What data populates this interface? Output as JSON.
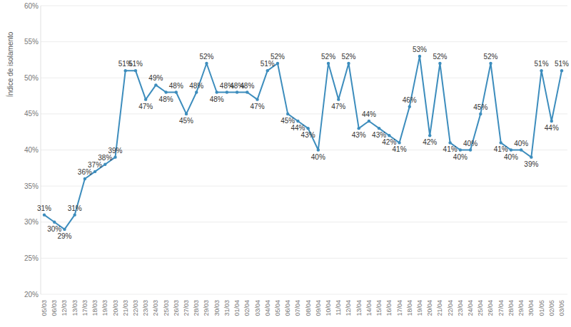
{
  "chart_data": {
    "type": "line",
    "y_label": "Índice de isolamento",
    "categories": [
      "05/03",
      "06/03",
      "12/03",
      "13/03",
      "17/03",
      "18/03",
      "19/03",
      "20/03",
      "21/03",
      "22/03",
      "23/03",
      "24/03",
      "25/03",
      "26/03",
      "27/03",
      "28/03",
      "29/03",
      "30/03",
      "31/03",
      "01/04",
      "02/04",
      "03/04",
      "04/04",
      "05/04",
      "06/04",
      "07/04",
      "08/04",
      "09/04",
      "10/04",
      "11/04",
      "12/04",
      "13/04",
      "14/04",
      "15/04",
      "16/04",
      "17/04",
      "18/04",
      "19/04",
      "20/04",
      "21/04",
      "22/04",
      "23/04",
      "24/04",
      "25/04",
      "26/04",
      "27/04",
      "28/04",
      "29/04",
      "30/04",
      "01/05",
      "02/05",
      "03/05"
    ],
    "values": [
      31,
      30,
      29,
      31,
      36,
      37,
      38,
      39,
      51,
      51,
      47,
      49,
      48,
      48,
      45,
      48,
      52,
      48,
      48,
      48,
      48,
      47,
      51,
      52,
      45,
      44,
      43,
      40,
      52,
      47,
      52,
      43,
      44,
      43,
      42,
      41,
      46,
      53,
      42,
      52,
      41,
      40,
      40,
      45,
      52,
      41,
      40,
      40,
      39,
      51,
      44,
      51
    ],
    "value_labels": [
      "31%",
      "30%",
      "29%",
      "31%",
      "36%",
      "37%",
      "38%",
      "39%",
      "51%",
      "51%",
      "47%",
      "49%",
      "48%",
      "48%",
      "45%",
      "48%",
      "52%",
      "48%",
      "48%",
      "48%",
      "48%",
      "47%",
      "51%",
      "52%",
      "45%",
      "44%",
      "43%",
      "40%",
      "52%",
      "47%",
      "52%",
      "43%",
      "44%",
      "43%",
      "42%",
      "41%",
      "46%",
      "53%",
      "42%",
      "52%",
      "41%",
      "40%",
      "40%",
      "45%",
      "52%",
      "41%",
      "40%",
      "40%",
      "39%",
      "51%",
      "44%",
      "51%"
    ],
    "color": "#3d8dbd",
    "marker": "circle",
    "ylim": [
      20,
      60
    ],
    "yticks": [
      {
        "value": 20,
        "label": "20%"
      },
      {
        "value": 25,
        "label": "25%"
      },
      {
        "value": 30,
        "label": "30%"
      },
      {
        "value": 35,
        "label": "35%"
      },
      {
        "value": 40,
        "label": "40%"
      },
      {
        "value": 45,
        "label": "45%"
      },
      {
        "value": 50,
        "label": "50%"
      },
      {
        "value": 55,
        "label": "55%"
      },
      {
        "value": 60,
        "label": "60%"
      }
    ],
    "grid": true,
    "data_labels": true
  }
}
